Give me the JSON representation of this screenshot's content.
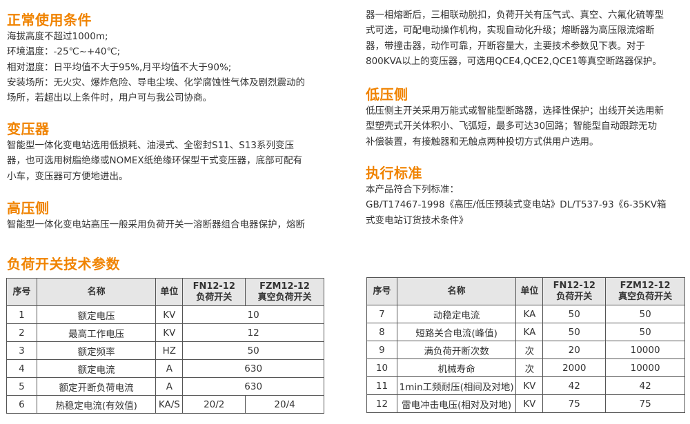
{
  "accent_color": "#f08300",
  "conditions": {
    "heading": "正常使用条件",
    "lines": [
      "海拔高度不超过1000m;",
      "环境温度：-25℃~+40℃;",
      "相对湿度：日平均值不大于95%,月平均值不大于90%;",
      "安装场所：无火灾、爆炸危险、导电尘埃、化学腐蚀性气体及剧烈震动的",
      "场所，若超出以上条件时，用户可与我公司协商。"
    ]
  },
  "transformer": {
    "heading": "变压器",
    "lines": [
      "智能型一体化变电站选用低损耗、油浸式、全密封S11、S13系列变压",
      "器，也可选用树脂绝缘或NOMEX纸绝缘环保型干式变压器，底部可配有",
      "小车，变压器可方便地进出。"
    ]
  },
  "high_voltage": {
    "heading": "高压侧",
    "lines": [
      "智能型一体化变电站高压一般采用负荷开关一溶断器组合电器保护，熔断",
      "器一相熔断后，三相联动脱扣，负荷开关有压气式、真空、六氟化硫等型",
      "式可选，可配电动操作机构，实现自动化升级；熔断器为高压限流熔断",
      "器，带撞击器，动作可靠，开断容量大，主要技术参数见下表。对于",
      "800KVA以上的变压器，可选用QCE4,QCE2,QCE1等真空断路器保护。"
    ]
  },
  "low_voltage": {
    "heading": "低压侧",
    "lines": [
      "低压侧主开关采用万能式或智能型断路器，选择性保护；出线开关选用新",
      "型塑壳式开关体积小、飞弧短，最多可达30回路；智能型自动跟踪无功",
      "补偿装置，有接触器和无触点两种投切方式供用户选用。"
    ]
  },
  "standards": {
    "heading": "执行标准",
    "lines": [
      "本产品符合下列标准：",
      "GB/T17467-1998《高压/低压预装式变电站》DL/T537-93《6-35KV箱",
      "式变电站订货技术条件》"
    ]
  },
  "table": {
    "title": "负荷开关技术参数",
    "headers": {
      "no": "序号",
      "name": "名称",
      "unit": "单位",
      "fn_model": "FN12-12",
      "fn_type": "负荷开关",
      "fzm_model": "FZM12-12",
      "fzm_type": "真空负荷开关"
    },
    "left_rows": [
      {
        "no": "1",
        "name": "额定电压",
        "unit": "KV",
        "merged": "10"
      },
      {
        "no": "2",
        "name": "最高工作电压",
        "unit": "KV",
        "merged": "12"
      },
      {
        "no": "3",
        "name": "额定频率",
        "unit": "HZ",
        "merged": "50"
      },
      {
        "no": "4",
        "name": "额定电流",
        "unit": "A",
        "merged": "630"
      },
      {
        "no": "5",
        "name": "额定开断负荷电流",
        "unit": "A",
        "merged": "630"
      },
      {
        "no": "6",
        "name": "热稳定电流(有效值)",
        "unit": "KA/S",
        "fn": "20/2",
        "fzm": "20/4"
      }
    ],
    "right_rows": [
      {
        "no": "7",
        "name": "动稳定电流",
        "unit": "KA",
        "fn": "50",
        "fzm": "50"
      },
      {
        "no": "8",
        "name": "短路关合电流(峰值)",
        "unit": "KA",
        "fn": "50",
        "fzm": "50"
      },
      {
        "no": "9",
        "name": "满负荷开断次数",
        "unit": "次",
        "fn": "20",
        "fzm": "10000"
      },
      {
        "no": "10",
        "name": "机械寿命",
        "unit": "次",
        "fn": "2000",
        "fzm": "10000"
      },
      {
        "no": "11",
        "name": "1min工频耐压(相间及对地)",
        "unit": "KV",
        "fn": "42",
        "fzm": "42"
      },
      {
        "no": "12",
        "name": "雷电冲击电压(相对及对地)",
        "unit": "KV",
        "fn": "75",
        "fzm": "75"
      }
    ]
  }
}
